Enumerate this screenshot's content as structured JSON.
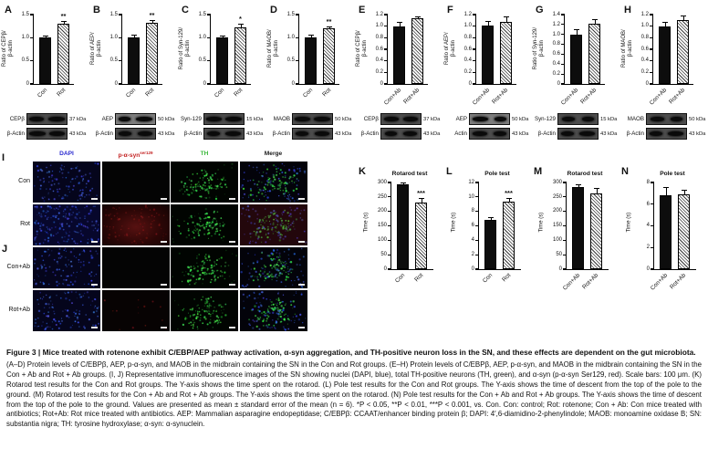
{
  "chart_data": [
    {
      "type": "bar",
      "panel": "A",
      "title": "",
      "ylabel_lines": [
        "Ratio of CEPβ/",
        "β-actin"
      ],
      "categories": [
        "Con",
        "Rot"
      ],
      "values": [
        1.0,
        1.3
      ],
      "errors": [
        0.05,
        0.07
      ],
      "yticks": [
        "0",
        "0.5",
        "1.0",
        "1.5"
      ],
      "ymax": 1.5,
      "sig": "**"
    },
    {
      "type": "bar",
      "panel": "B",
      "title": "",
      "ylabel_lines": [
        "Ratio of AEP/",
        "β-actin"
      ],
      "categories": [
        "Con",
        "Rot"
      ],
      "values": [
        1.0,
        1.32
      ],
      "errors": [
        0.07,
        0.06
      ],
      "yticks": [
        "0",
        "0.5",
        "1.0",
        "1.5"
      ],
      "ymax": 1.5,
      "sig": "**"
    },
    {
      "type": "bar",
      "panel": "C",
      "title": "",
      "ylabel_lines": [
        "Ratio of Syn-129/",
        "β-actin"
      ],
      "categories": [
        "Con",
        "Rot"
      ],
      "values": [
        1.0,
        1.22
      ],
      "errors": [
        0.05,
        0.09
      ],
      "yticks": [
        "0",
        "0.5",
        "1.0",
        "1.5"
      ],
      "ymax": 1.5,
      "sig": "*"
    },
    {
      "type": "bar",
      "panel": "D",
      "title": "",
      "ylabel_lines": [
        "Ratio of MAOB/",
        "β-actin"
      ],
      "categories": [
        "Con",
        "Rot"
      ],
      "values": [
        1.0,
        1.2
      ],
      "errors": [
        0.06,
        0.05
      ],
      "yticks": [
        "0",
        "0.5",
        "1.0",
        "1.5"
      ],
      "ymax": 1.5,
      "sig": "**"
    },
    {
      "type": "bar",
      "panel": "E",
      "title": "",
      "ylabel_lines": [
        "Ratio of CEPβ/",
        "β-actin"
      ],
      "categories": [
        "Con+Ab",
        "Rot+Ab"
      ],
      "values": [
        1.0,
        1.13
      ],
      "errors": [
        0.07,
        0.04
      ],
      "yticks": [
        "0",
        "0.2",
        "0.4",
        "0.6",
        "0.8",
        "1.0",
        "1.2"
      ],
      "ymax": 1.2,
      "sig": ""
    },
    {
      "type": "bar",
      "panel": "F",
      "title": "",
      "ylabel_lines": [
        "Ratio of AEP/",
        "β-actin"
      ],
      "categories": [
        "Con+Ab",
        "Rot+Ab"
      ],
      "values": [
        1.01,
        1.07
      ],
      "errors": [
        0.08,
        0.1
      ],
      "yticks": [
        "0",
        "0.2",
        "0.4",
        "0.6",
        "0.8",
        "1.0",
        "1.2"
      ],
      "ymax": 1.2,
      "sig": ""
    },
    {
      "type": "bar",
      "panel": "G",
      "title": "",
      "ylabel_lines": [
        "Ratio of Syn-129/",
        "β-actin"
      ],
      "categories": [
        "Con+Ab",
        "Rot+Ab"
      ],
      "values": [
        1.0,
        1.21
      ],
      "errors": [
        0.11,
        0.1
      ],
      "yticks": [
        "0",
        "0.2",
        "0.4",
        "0.6",
        "0.8",
        "1.0",
        "1.2",
        "1.4"
      ],
      "ymax": 1.4,
      "sig": ""
    },
    {
      "type": "bar",
      "panel": "H",
      "title": "",
      "ylabel_lines": [
        "Ratio of MAOB/",
        "β-actin"
      ],
      "categories": [
        "Con+Ab",
        "Rot+Ab"
      ],
      "values": [
        1.0,
        1.1
      ],
      "errors": [
        0.07,
        0.08
      ],
      "yticks": [
        "0",
        "0.2",
        "0.4",
        "0.6",
        "0.8",
        "1.0",
        "1.2"
      ],
      "ymax": 1.2,
      "sig": ""
    },
    {
      "type": "bar",
      "panel": "K",
      "title": "Rotarod test",
      "ylabel_lines": [
        "Time (s)"
      ],
      "categories": [
        "Con",
        "Rot"
      ],
      "values": [
        295,
        230
      ],
      "errors": [
        4,
        17
      ],
      "yticks": [
        "0",
        "50",
        "100",
        "150",
        "200",
        "250",
        "300"
      ],
      "ymax": 300,
      "sig": "***"
    },
    {
      "type": "bar",
      "panel": "L",
      "title": "Pole test",
      "ylabel_lines": [
        "Time (s)"
      ],
      "categories": [
        "Con",
        "Rot"
      ],
      "values": [
        6.8,
        9.4
      ],
      "errors": [
        0.4,
        0.4
      ],
      "yticks": [
        "0",
        "2",
        "4",
        "6",
        "8",
        "10",
        "12"
      ],
      "ymax": 12,
      "sig": "***"
    },
    {
      "type": "bar",
      "panel": "M",
      "title": "Rotarod test",
      "ylabel_lines": [
        "Time (s)"
      ],
      "categories": [
        "Con+Ab",
        "Rot+Ab"
      ],
      "values": [
        283,
        262
      ],
      "errors": [
        10,
        20
      ],
      "yticks": [
        "0",
        "50",
        "100",
        "150",
        "200",
        "250",
        "300"
      ],
      "ymax": 300,
      "sig": ""
    },
    {
      "type": "bar",
      "panel": "N",
      "title": "Pole test",
      "ylabel_lines": [
        "Time (s)"
      ],
      "categories": [
        "Con+Ab",
        "Rot+Ab"
      ],
      "values": [
        6.8,
        6.9
      ],
      "errors": [
        0.8,
        0.45
      ],
      "yticks": [
        "0",
        "2",
        "4",
        "6",
        "8"
      ],
      "ymax": 8,
      "sig": ""
    }
  ],
  "blots": {
    "rows": [
      {
        "group": "Con-Rot",
        "units": [
          {
            "protein": "CEPβ",
            "kda": "37 kDa",
            "loading": "β-Actin",
            "loading_kda": "43 kDa"
          },
          {
            "protein": "AEP",
            "kda": "50 kDa",
            "loading": "β-Actin",
            "loading_kda": "43 kDa"
          },
          {
            "protein": "Syn-129",
            "kda": "15 kDa",
            "loading": "β-Actin",
            "loading_kda": "43 kDa"
          },
          {
            "protein": "MAOB",
            "kda": "50 kDa",
            "loading": "β-Actin",
            "loading_kda": "43 kDa"
          }
        ]
      },
      {
        "group": "ConAb-RotAb",
        "units": [
          {
            "protein": "CEPβ",
            "kda": "37 kDa",
            "loading": "β-Actin",
            "loading_kda": "43 kDa"
          },
          {
            "protein": "AEP",
            "kda": "50 kDa",
            "loading": "Actin",
            "loading_kda": "43 kDa"
          },
          {
            "protein": "Syn-129",
            "kda": "15 kDa",
            "loading": "β-Actin",
            "loading_kda": "43 kDa"
          },
          {
            "protein": "MAOB",
            "kda": "50 kDa",
            "loading": "β-Actin",
            "loading_kda": "43 kDa"
          }
        ]
      }
    ]
  },
  "immunofluorescence": {
    "columns": [
      {
        "label": "DAPI",
        "sup": "",
        "color": "#2b2bd0"
      },
      {
        "label": "p-α-syn",
        "sup": "ser129",
        "color": "#c32222"
      },
      {
        "label": "TH",
        "sup": "",
        "color": "#3cb93c"
      },
      {
        "label": "Merge",
        "sup": "",
        "color": "#1a1a1a"
      }
    ],
    "rows": [
      {
        "panel": "I",
        "label": "Con",
        "cells": [
          "dapi",
          "psyn-none",
          "th",
          "merge"
        ]
      },
      {
        "panel": "I",
        "label": "Rot",
        "cells": [
          "dapi-bright",
          "psyn-strong",
          "th",
          "merge-red"
        ]
      },
      {
        "panel": "J",
        "label": "Con+Ab",
        "cells": [
          "dapi",
          "psyn-none",
          "th",
          "merge"
        ]
      },
      {
        "panel": "J",
        "label": "Rot+Ab",
        "cells": [
          "dapi",
          "psyn-faint",
          "th",
          "merge"
        ]
      }
    ],
    "panel_letters": [
      "I",
      "J"
    ]
  },
  "caption": {
    "title": "Figure 3  |  Mice treated with rotenone exhibit C/EBP/AEP pathway activation, α-syn aggregation, and TH-positive neuron loss in the SN, and these effects are dependent on the gut microbiota.",
    "body": "(A–D) Protein levels of C/EBPβ, AEP, p-α-syn, and MAOB in the midbrain containing the SN in the Con and Rot groups. (E–H) Protein levels of C/EBPβ, AEP, p-α-syn, and MAOB in the midbrain containing the SN in the Con + Ab and Rot + Ab groups. (I, J) Representative immunofluorescence images of the SN showing nuclei (DAPI, blue), total TH-positive neurons (TH, green), and α-syn (p-α-syn Ser129, red). Scale bars: 100 μm. (K) Rotarod test results for the Con and Rot groups. The Y-axis shows the time spent on the rotarod. (L) Pole test results for the Con and Rot groups. The Y-axis shows the time of descent from the top of the pole to the ground. (M) Rotarod test results for the Con + Ab and Rot + Ab groups. The Y-axis shows the time spent on the rotarod. (N) Pole test results for the Con + Ab and Rot + Ab groups. The Y-axis shows the time of descent from the top of the pole to the ground. Values are presented as mean ± standard error of the mean (n = 6). *P < 0.05, **P < 0.01, ***P < 0.001, vs. Con. Con: control; Rot: rotenone; Con + Ab: Con mice treated with antibiotics; Rot+Ab: Rot mice treated with antibiotics. AEP: Mammalian asparagine endopeptidase; C/EBPβ: CCAAT/enhancer binding protein β; DAPI: 4′,6-diamidino-2-phenylindole; MAOB: monoamine oxidase B; SN: substantia nigra; TH: tyrosine hydroxylase; α-syn: α-synuclein."
  }
}
